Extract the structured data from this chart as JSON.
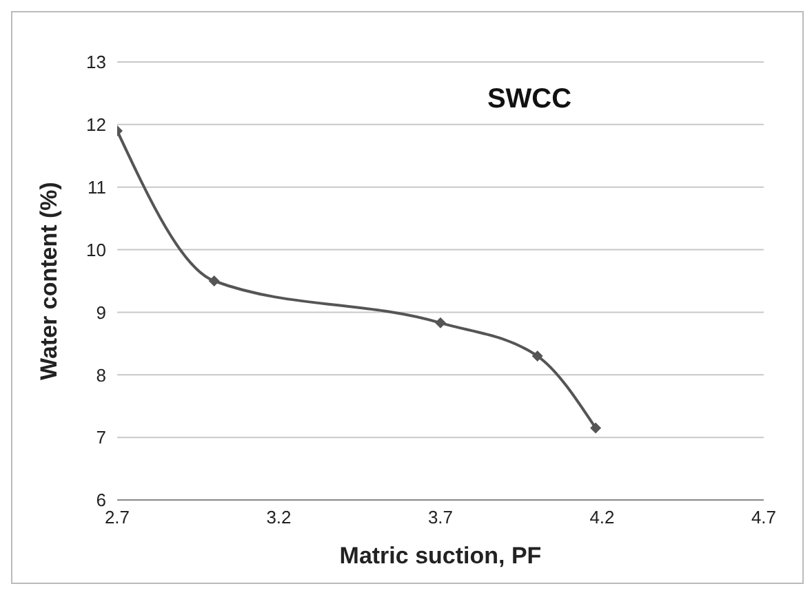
{
  "chart_data": {
    "type": "line",
    "title": "SWCC",
    "xlabel": "Matric suction, PF",
    "ylabel": "Water content (%)",
    "x": [
      2.7,
      3.0,
      3.7,
      4.0,
      4.18
    ],
    "series": [
      {
        "color": "#555555",
        "values": [
          11.9,
          9.5,
          8.83,
          8.3,
          7.15
        ]
      }
    ],
    "xlim": [
      2.7,
      4.7
    ],
    "xticks": [
      2.7,
      3.2,
      3.7,
      4.2,
      4.7
    ],
    "ylim": [
      6,
      13
    ],
    "yticks": [
      6,
      7,
      8,
      9,
      10,
      11,
      12,
      13
    ],
    "grid": "y",
    "marker": "diamond",
    "line_style": "solid"
  }
}
